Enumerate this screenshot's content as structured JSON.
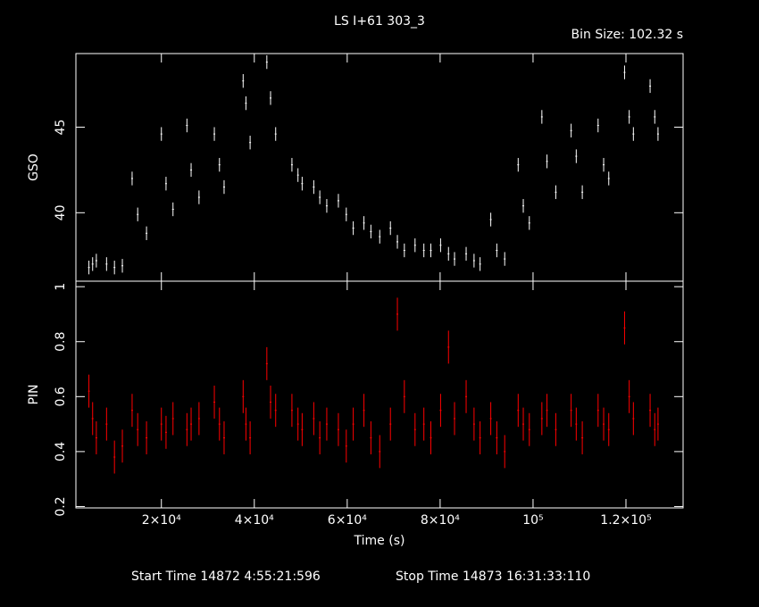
{
  "chart_data": [
    {
      "type": "errorbar",
      "title": "LS I+61 303_3",
      "subtitle": "Bin Size: 102.32 s",
      "ylabel": "GSO",
      "xlim": [
        1600,
        132300
      ],
      "ylim": [
        36,
        49.3
      ],
      "yticks": [
        40,
        45
      ],
      "series": [
        {
          "color": "#ffffff",
          "error": 0.4,
          "x": [
            4400,
            5200,
            6000,
            8200,
            9900,
            11600,
            13700,
            14900,
            16800,
            20000,
            21000,
            22500,
            25500,
            26400,
            28100,
            31400,
            32500,
            33500,
            37600,
            38200,
            39100,
            42700,
            43500,
            44600,
            48100,
            49400,
            50300,
            52800,
            54100,
            55600,
            58100,
            59800,
            61300,
            63600,
            65100,
            67000,
            69300,
            70800,
            72300,
            74600,
            76500,
            78000,
            80100,
            81800,
            83100,
            85600,
            87300,
            88600,
            90900,
            92200,
            93900,
            96800,
            97900,
            99200,
            101900,
            103000,
            104900,
            108200,
            109300,
            110600,
            114000,
            115200,
            116300,
            119700,
            120700,
            121600,
            125200,
            126200,
            126900
          ],
          "values": [
            36.8,
            37.0,
            37.2,
            37.0,
            36.8,
            36.9,
            42.0,
            39.9,
            38.8,
            44.6,
            41.7,
            40.2,
            45.1,
            42.5,
            40.9,
            44.6,
            42.8,
            41.5,
            47.7,
            46.4,
            44.1,
            48.8,
            46.7,
            44.6,
            42.8,
            42.2,
            41.7,
            41.5,
            40.9,
            40.4,
            40.7,
            39.9,
            39.1,
            39.4,
            38.9,
            38.6,
            39.1,
            38.3,
            37.8,
            38.1,
            37.8,
            37.8,
            38.1,
            37.6,
            37.3,
            37.6,
            37.2,
            37.0,
            39.6,
            37.8,
            37.3,
            42.8,
            40.4,
            39.4,
            45.6,
            43.0,
            41.2,
            44.8,
            43.3,
            41.2,
            45.1,
            42.8,
            42.0,
            48.2,
            45.6,
            44.6,
            47.4,
            45.6,
            44.6
          ]
        }
      ]
    },
    {
      "type": "errorbar",
      "ylabel": "PIN",
      "xlabel": "Time (s)",
      "xlim": [
        1600,
        132300
      ],
      "ylim": [
        0.195,
        1.02
      ],
      "yticks": [
        0.2,
        0.4,
        0.6,
        0.8,
        1
      ],
      "xticks": [
        {
          "value": 20000,
          "label": "2×10⁴"
        },
        {
          "value": 40000,
          "label": "4×10⁴"
        },
        {
          "value": 60000,
          "label": "6×10⁴"
        },
        {
          "value": 80000,
          "label": "8×10⁴"
        },
        {
          "value": 100000,
          "label": "10⁵"
        },
        {
          "value": 120000,
          "label": "1.2×10⁵"
        }
      ],
      "series": [
        {
          "color": "#ff0000",
          "error": 0.06,
          "x": [
            4400,
            5200,
            6000,
            8200,
            9900,
            11600,
            13700,
            14900,
            16800,
            20000,
            21000,
            22500,
            25500,
            26400,
            28100,
            31400,
            32500,
            33500,
            37600,
            38200,
            39100,
            42700,
            43500,
            44600,
            48100,
            49400,
            50300,
            52800,
            54100,
            55600,
            58100,
            59800,
            61300,
            63600,
            65100,
            67000,
            69300,
            70800,
            72300,
            74600,
            76500,
            78000,
            80100,
            81800,
            83100,
            85600,
            87300,
            88600,
            90900,
            92200,
            93900,
            96800,
            97900,
            99200,
            101900,
            103000,
            104900,
            108200,
            109300,
            110600,
            114000,
            115200,
            116300,
            119700,
            120700,
            121600,
            125200,
            126200,
            126900
          ],
          "values": [
            0.62,
            0.52,
            0.45,
            0.5,
            0.38,
            0.42,
            0.55,
            0.48,
            0.45,
            0.5,
            0.47,
            0.52,
            0.48,
            0.5,
            0.52,
            0.58,
            0.5,
            0.45,
            0.6,
            0.5,
            0.45,
            0.72,
            0.58,
            0.55,
            0.55,
            0.5,
            0.48,
            0.52,
            0.45,
            0.5,
            0.48,
            0.42,
            0.5,
            0.55,
            0.45,
            0.4,
            0.5,
            0.9,
            0.6,
            0.48,
            0.5,
            0.45,
            0.55,
            0.78,
            0.52,
            0.6,
            0.5,
            0.45,
            0.52,
            0.45,
            0.4,
            0.55,
            0.5,
            0.48,
            0.52,
            0.55,
            0.48,
            0.55,
            0.5,
            0.45,
            0.55,
            0.5,
            0.48,
            0.85,
            0.6,
            0.52,
            0.55,
            0.48,
            0.5
          ]
        }
      ]
    }
  ],
  "footer": [
    "Start Time 14872  4:55:21:596",
    "Stop Time 14873 16:31:33:110"
  ]
}
